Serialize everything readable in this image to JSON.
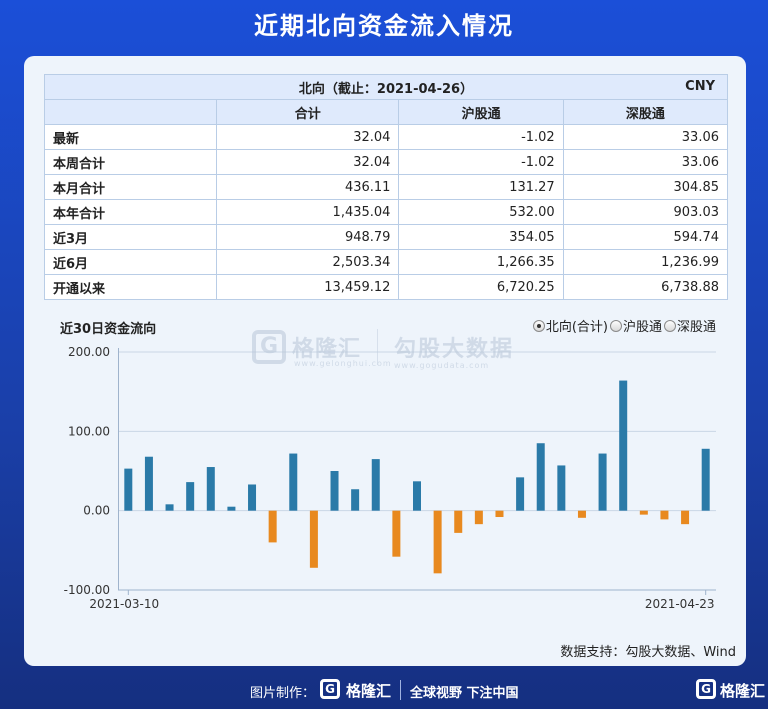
{
  "page_title": "近期北向资金流入情况",
  "table": {
    "header_title": "北向（截止：2021-04-26）",
    "currency": "CNY",
    "columns": [
      "合计",
      "沪股通",
      "深股通"
    ],
    "rows": [
      {
        "label": "最新",
        "values": [
          "32.04",
          "-1.02",
          "33.06"
        ]
      },
      {
        "label": "本周合计",
        "values": [
          "32.04",
          "-1.02",
          "33.06"
        ]
      },
      {
        "label": "本月合计",
        "values": [
          "436.11",
          "131.27",
          "304.85"
        ]
      },
      {
        "label": "本年合计",
        "values": [
          "1,435.04",
          "532.00",
          "903.03"
        ]
      },
      {
        "label": "近3月",
        "values": [
          "948.79",
          "354.05",
          "594.74"
        ]
      },
      {
        "label": "近6月",
        "values": [
          "2,503.34",
          "1,266.35",
          "1,236.99"
        ]
      },
      {
        "label": "开通以来",
        "values": [
          "13,459.12",
          "6,720.25",
          "6,738.88"
        ]
      }
    ]
  },
  "chart_section": {
    "title": "近30日资金流向",
    "radio_options": [
      "北向(合计)",
      "沪股通",
      "深股通"
    ],
    "selected_option": "北向(合计)"
  },
  "watermark": {
    "brand": "格隆汇",
    "brand_url": "www.gelonghui.com",
    "partner": "勾股大数据",
    "partner_url": "www.gogudata.com"
  },
  "chart_data": {
    "type": "bar",
    "title": "",
    "xlabel": "",
    "ylabel": "",
    "ylim": [
      -100,
      200
    ],
    "y_ticks": [
      "200.00",
      "100.00",
      "0.00",
      "-100.00"
    ],
    "x_tick_labels": [
      "2021-03-10",
      "2021-04-23"
    ],
    "grid": "horizontal",
    "positive_color": "#2a7aa8",
    "negative_color": "#e8891f",
    "values": [
      53,
      68,
      8,
      36,
      55,
      5,
      33,
      -40,
      72,
      -72,
      50,
      27,
      65,
      -58,
      37,
      -79,
      -28,
      -17,
      -8,
      42,
      85,
      57,
      -9,
      72,
      164,
      -5,
      -11,
      -17,
      78
    ]
  },
  "source_note": "数据支持：勾股大数据、Wind",
  "footer": {
    "made_by": "图片制作：",
    "brand": "格隆汇",
    "slogan": "全球视野 下注中国",
    "brand_right": "格隆汇",
    "logo_letter": "G"
  }
}
